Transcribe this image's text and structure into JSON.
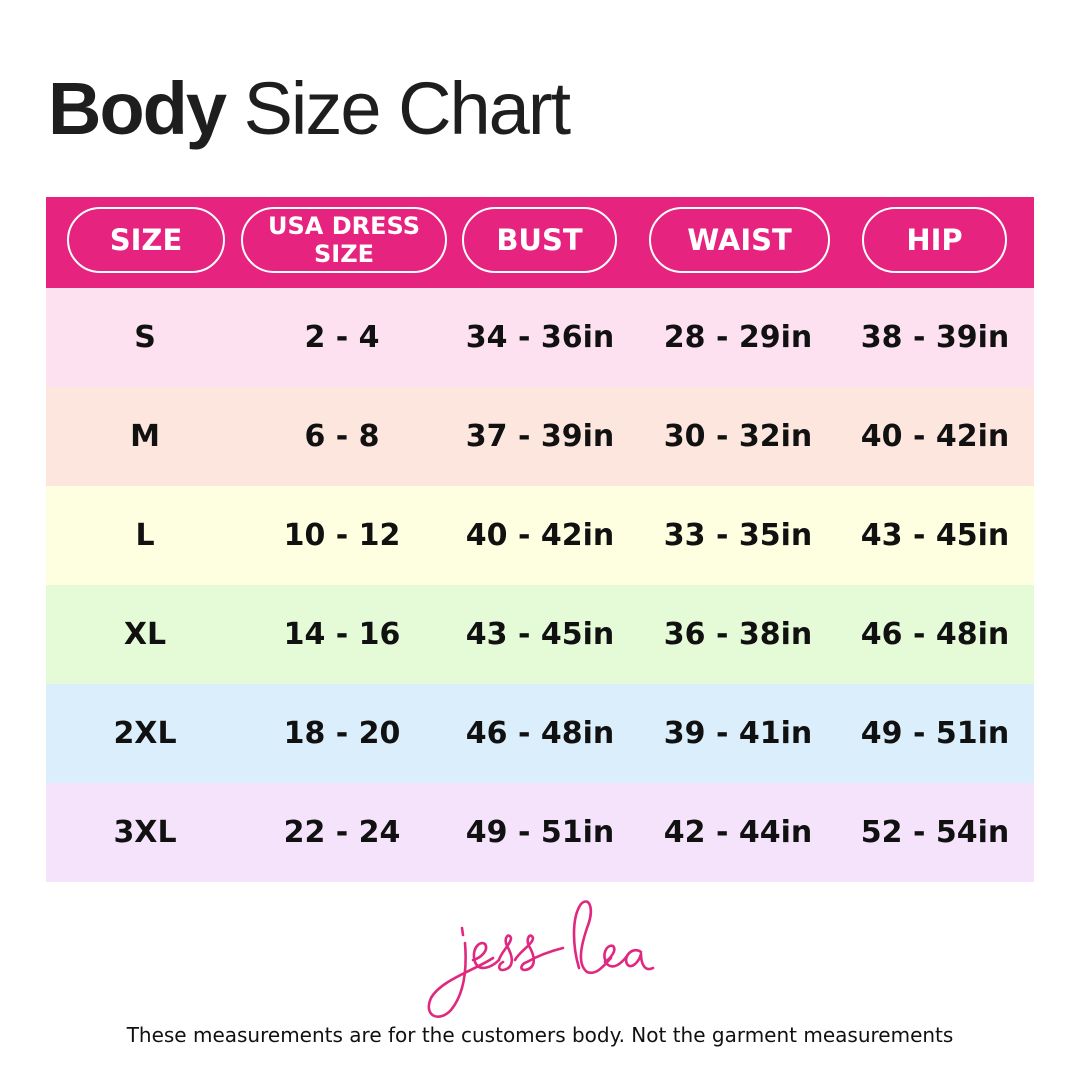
{
  "title": {
    "bold": "Body",
    "regular": "Size Chart"
  },
  "header_color": "#e6237e",
  "columns": [
    "SIZE",
    "USA DRESS SIZE",
    "BUST",
    "WAIST",
    "HIP"
  ],
  "rows": [
    {
      "color": "#fde1f0",
      "cells": [
        "S",
        "2 - 4",
        "34 - 36in",
        "28 - 29in",
        "38 - 39in"
      ]
    },
    {
      "color": "#fde6dd",
      "cells": [
        "M",
        "6 - 8",
        "37 - 39in",
        "30 - 32in",
        "40 - 42in"
      ]
    },
    {
      "color": "#fefee0",
      "cells": [
        "L",
        "10 - 12",
        "40 - 42in",
        "33 - 35in",
        "43 - 45in"
      ]
    },
    {
      "color": "#e5fbd8",
      "cells": [
        "XL",
        "14 - 16",
        "43 - 45in",
        "36 - 38in",
        "46 - 48in"
      ]
    },
    {
      "color": "#daeefb",
      "cells": [
        "2XL",
        "18 - 20",
        "46 - 48in",
        "39 - 41in",
        "49 - 51in"
      ]
    },
    {
      "color": "#f5e3fc",
      "cells": [
        "3XL",
        "22 - 24",
        "49 - 51in",
        "42 - 44in",
        "52 - 54in"
      ]
    }
  ],
  "logo": {
    "text": "jess lea",
    "color": "#e0287f"
  },
  "footer_note": "These measurements are for the customers body. Not the garment measurements"
}
